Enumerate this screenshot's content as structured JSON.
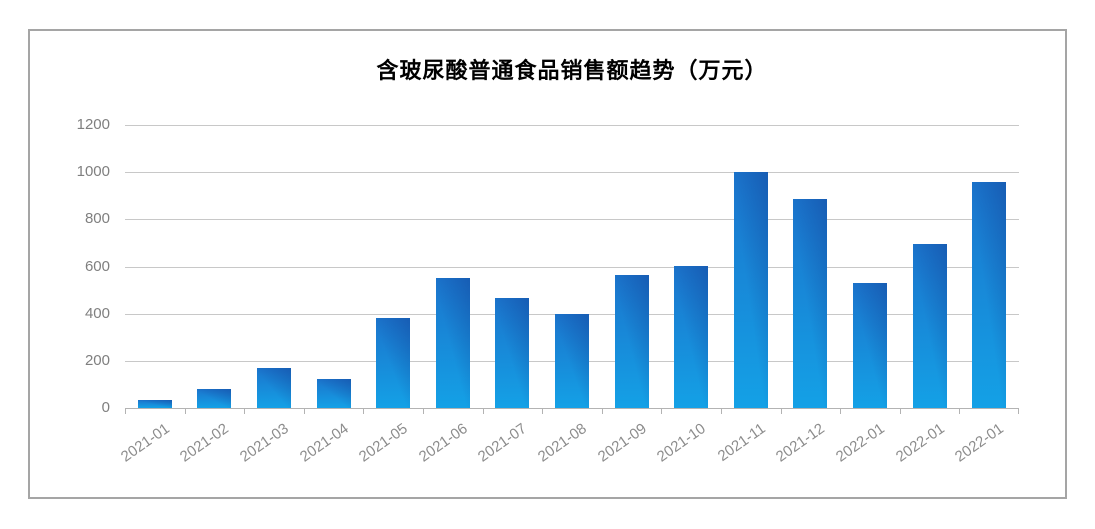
{
  "page": {
    "background": "#ffffff",
    "frame_border_color": "#a5a5a5"
  },
  "chart_data": {
    "type": "bar",
    "title": "含玻尿酸普通食品销售额趋势（万元）",
    "categories": [
      "2021-01",
      "2021-02",
      "2021-03",
      "2021-04",
      "2021-05",
      "2021-06",
      "2021-07",
      "2021-08",
      "2021-09",
      "2021-10",
      "2021-11",
      "2021-12",
      "2022-01",
      "2022-01",
      "2022-01"
    ],
    "values": [
      35,
      80,
      170,
      125,
      380,
      550,
      465,
      400,
      565,
      600,
      1000,
      885,
      530,
      695,
      960
    ],
    "xlabel": "",
    "ylabel": "",
    "ylim": [
      0,
      1200
    ],
    "yticks": [
      0,
      200,
      400,
      600,
      800,
      1000,
      1200
    ],
    "grid": true,
    "legend_position": "none",
    "colors": {
      "bar_gradient_light": "#14a1e6",
      "bar_gradient_dark": "#1a5db3",
      "gridline": "#c8c8c8",
      "axis": "#b3b3b3",
      "tick_label": "#8c8c8c",
      "y_label": "#7f7f7f",
      "title": "#000000"
    }
  }
}
